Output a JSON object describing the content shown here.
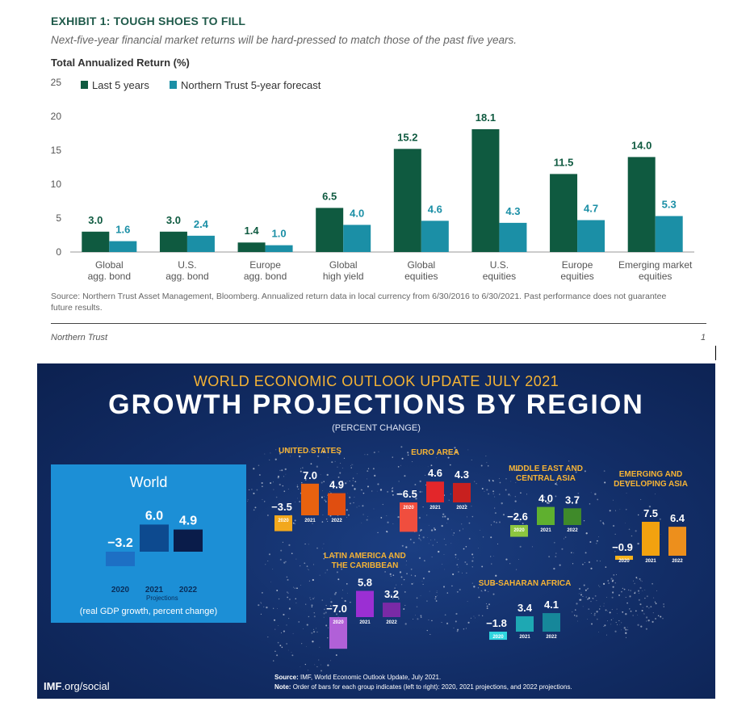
{
  "exhibit": {
    "title": "EXHIBIT 1:  TOUGH SHOES TO FILL",
    "subtitle": "Next-five-year financial market returns will be hard-pressed to match those of the past five years.",
    "ylabel": "Total Annualized Return (%)",
    "source": "Source: Northern Trust Asset Management, Bloomberg. Annualized return data in local currency from 6/30/2016 to 6/30/2021. Past performance does not guarantee future results.",
    "footer_left": "Northern Trust",
    "footer_right": "1"
  },
  "imf": {
    "update_title": "WORLD ECONOMIC OUTLOOK UPDATE JULY 2021",
    "main_title": "GROWTH PROJECTIONS BY REGION",
    "subtitle": "(PERCENT CHANGE)",
    "world_label": "World",
    "world_note": "(real GDP growth, percent change)",
    "projections_label": "Projections",
    "source_label": "Source:",
    "source_text": "IMF, World Economic Outlook Update, July 2021.",
    "note_label": "Note:",
    "note_text": "Order of bars for each group indicates (left to right): 2020, 2021 projections, and 2022 projections.",
    "brand_bold": "IMF",
    "brand_rest": ".org/social"
  },
  "chart_data": [
    {
      "type": "bar",
      "title": "EXHIBIT 1:  TOUGH SHOES TO FILL",
      "ylabel": "Total Annualized Return (%)",
      "ylim": [
        0,
        25
      ],
      "yticks": [
        0,
        5,
        10,
        15,
        20,
        25
      ],
      "grid": false,
      "legend_position": "top-left",
      "categories": [
        [
          "Global",
          "agg. bond"
        ],
        [
          "U.S.",
          "agg. bond"
        ],
        [
          "Europe",
          "agg. bond"
        ],
        [
          "Global",
          "high yield"
        ],
        [
          "Global",
          "equities"
        ],
        [
          "U.S.",
          "equities"
        ],
        [
          "Europe",
          "equities"
        ],
        [
          "Emerging market",
          "equities"
        ]
      ],
      "series": [
        {
          "name": "Last 5 years",
          "color": "#0f5a40",
          "values": [
            3.0,
            3.0,
            1.4,
            6.5,
            15.2,
            18.1,
            11.5,
            14.0
          ]
        },
        {
          "name": "Northern Trust 5-year forecast",
          "color": "#1b8fa6",
          "values": [
            1.6,
            2.4,
            1.0,
            4.0,
            4.6,
            4.3,
            4.7,
            5.3
          ]
        }
      ]
    },
    {
      "type": "bar",
      "title": "GROWTH PROJECTIONS BY REGION",
      "years": [
        "2020",
        "2021",
        "2022"
      ],
      "groups": [
        {
          "name": "World",
          "values": [
            -3.2,
            6.0,
            4.9
          ],
          "colors": [
            "#1d6fc4",
            "#0d4a8f",
            "#0a1c4a"
          ]
        },
        {
          "name": "UNITED STATES",
          "values": [
            -3.5,
            7.0,
            4.9
          ],
          "colors": [
            "#f2a81d",
            "#e8620f",
            "#e04e10"
          ]
        },
        {
          "name": "EURO AREA",
          "values": [
            -6.5,
            4.6,
            4.3
          ],
          "colors": [
            "#f04e3e",
            "#e3262a",
            "#c8201f"
          ]
        },
        {
          "name": "MIDDLE EAST AND CENTRAL ASIA",
          "values": [
            -2.6,
            4.0,
            3.7
          ],
          "colors": [
            "#8cc63f",
            "#5fb02f",
            "#3f8a2a"
          ]
        },
        {
          "name": "EMERGING AND DEVELOPING ASIA",
          "values": [
            -0.9,
            7.5,
            6.4
          ],
          "colors": [
            "#f7b21b",
            "#f2a20f",
            "#ed8f1c"
          ]
        },
        {
          "name": "LATIN AMERICA AND THE CARIBBEAN",
          "values": [
            -7.0,
            5.8,
            3.2
          ],
          "colors": [
            "#b160d8",
            "#9b2fd3",
            "#7a2aa6"
          ]
        },
        {
          "name": "SUB-SAHARAN AFRICA",
          "values": [
            -1.8,
            3.4,
            4.1
          ],
          "colors": [
            "#2fd6e0",
            "#1ea8b3",
            "#16879a"
          ]
        }
      ]
    }
  ]
}
